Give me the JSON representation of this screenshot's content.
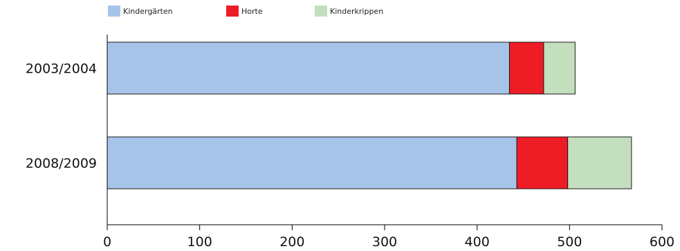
{
  "chart_data": {
    "type": "bar",
    "orientation": "horizontal",
    "stacked": true,
    "categories": [
      "2003/2004",
      "2008/2009"
    ],
    "series": [
      {
        "name": "Kindergärten",
        "color": "#a6c4e8",
        "values": [
          435,
          443
        ]
      },
      {
        "name": "Horte",
        "color": "#ee1c25",
        "values": [
          37,
          55
        ]
      },
      {
        "name": "Kinderkrippen",
        "color": "#c3dfbd",
        "values": [
          34,
          69
        ]
      }
    ],
    "xlim": [
      0,
      600
    ],
    "xticks": [
      0,
      100,
      200,
      300,
      400,
      500,
      600
    ],
    "title": "",
    "xlabel": "",
    "ylabel": "",
    "grid": false,
    "legend_position": "top-left"
  }
}
